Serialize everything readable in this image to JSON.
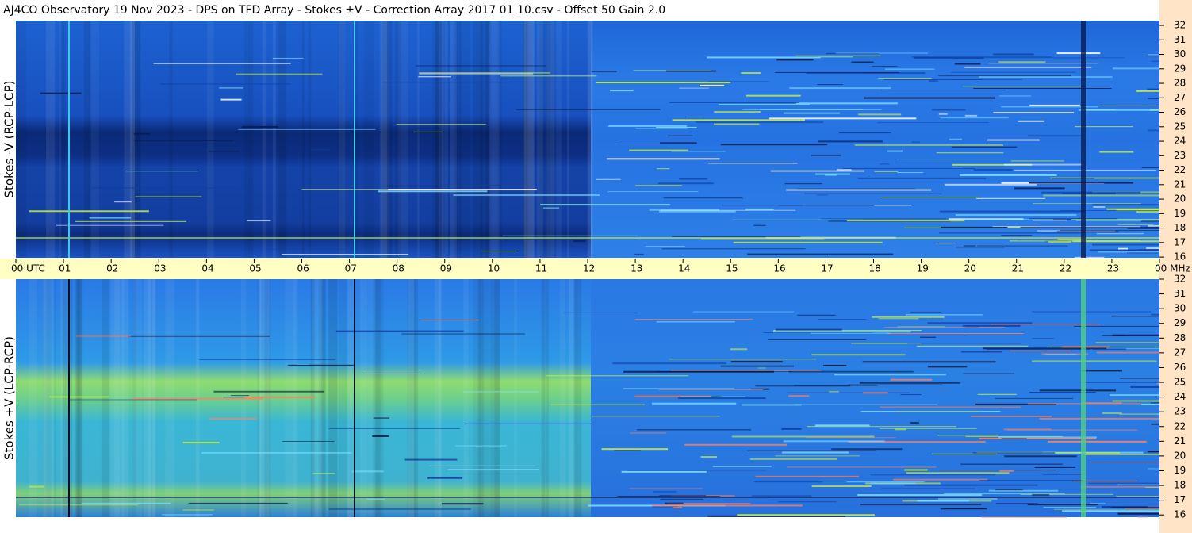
{
  "chart_data": [
    {
      "type": "spectrogram",
      "title": "AJ4CO Observatory  19 Nov 2023  -  DPS on TFD Array  -  Stokes ±V  -  Correction Array 2017 01 10.csv  -  Offset 50  Gain 2.0",
      "ylabel": "Stokes -V (RCP-LCP)",
      "xlim": [
        0,
        24
      ],
      "xticks": [
        {
          "value": 0,
          "label": "00  UTC"
        },
        {
          "value": 1,
          "label": "01"
        },
        {
          "value": 2,
          "label": "02"
        },
        {
          "value": 3,
          "label": "03"
        },
        {
          "value": 4,
          "label": "04"
        },
        {
          "value": 5,
          "label": "05"
        },
        {
          "value": 6,
          "label": "06"
        },
        {
          "value": 7,
          "label": "07"
        },
        {
          "value": 8,
          "label": "08"
        },
        {
          "value": 9,
          "label": "09"
        },
        {
          "value": 10,
          "label": "10"
        },
        {
          "value": 11,
          "label": "11"
        },
        {
          "value": 12,
          "label": "12"
        },
        {
          "value": 13,
          "label": "13"
        },
        {
          "value": 14,
          "label": "14"
        },
        {
          "value": 15,
          "label": "15"
        },
        {
          "value": 16,
          "label": "16"
        },
        {
          "value": 17,
          "label": "17"
        },
        {
          "value": 18,
          "label": "18"
        },
        {
          "value": 19,
          "label": "19"
        },
        {
          "value": 20,
          "label": "20"
        },
        {
          "value": 21,
          "label": "21"
        },
        {
          "value": 22,
          "label": "22"
        },
        {
          "value": 23,
          "label": "23"
        },
        {
          "value": 24,
          "label": "00 MHz"
        }
      ],
      "ylim": [
        15.95,
        32.33
      ],
      "yticks": [
        16,
        17,
        18,
        19,
        20,
        21,
        22,
        23,
        24,
        25,
        26,
        27,
        28,
        29,
        30,
        31,
        32
      ]
    },
    {
      "type": "spectrogram",
      "ylabel": "Stokes +V (LCP-RCP)",
      "xlim": [
        0,
        24
      ],
      "ylim": [
        15.85,
        32
      ],
      "yticks": [
        16,
        17,
        18,
        19,
        20,
        21,
        22,
        23,
        24,
        25,
        26,
        27,
        28,
        29,
        30,
        31,
        32
      ]
    }
  ]
}
